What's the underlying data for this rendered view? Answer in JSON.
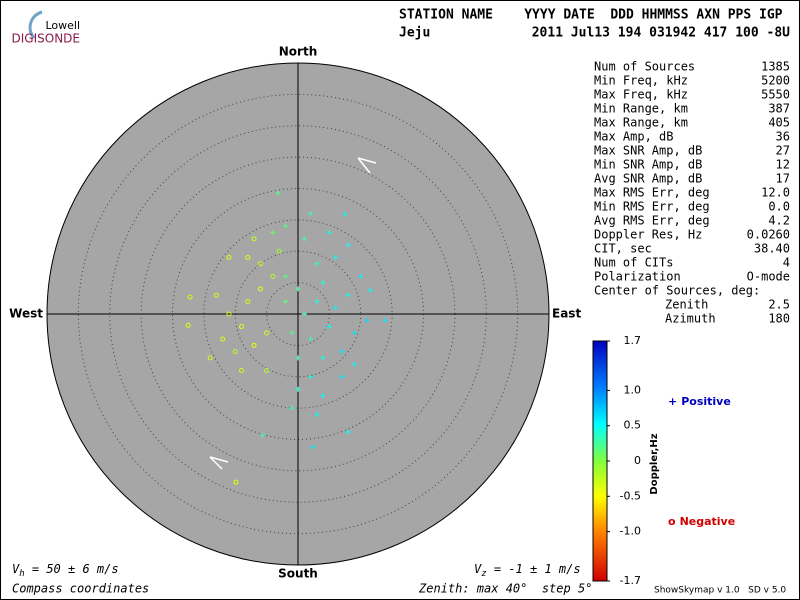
{
  "logo": {
    "top": "Lowell",
    "bottom": "DIGISONDE"
  },
  "header": {
    "line1": "STATION NAME    YYYY DATE  DDD HHMMSS AXN PPS IGP",
    "station": "Jeju",
    "line2": "2011 Jul13 194 031942 417 100 -8U"
  },
  "stats": {
    "rows": [
      [
        "Num of Sources",
        "1385"
      ],
      [
        "Min Freq, kHz",
        "5200"
      ],
      [
        "Max Freq, kHz",
        "5550"
      ],
      [
        "Min Range, km",
        "387"
      ],
      [
        "Max Range, km",
        "405"
      ],
      [
        "Max Amp, dB",
        "36"
      ],
      [
        "Max SNR Amp, dB",
        "27"
      ],
      [
        "Min SNR Amp, dB",
        "12"
      ],
      [
        "Avg SNR Amp, dB",
        "17"
      ],
      [
        "Max RMS Err, deg",
        "12.0"
      ],
      [
        "Min RMS Err, deg",
        "0.0"
      ],
      [
        "Avg RMS Err, deg",
        "4.2"
      ],
      [
        "Doppler Res, Hz",
        "0.0260"
      ],
      [
        "CIT, sec",
        "38.40"
      ],
      [
        "Num of CITs",
        "4"
      ],
      [
        "Polarization",
        "O-mode"
      ],
      [
        "Center of Sources, deg:"
      ],
      [
        "Zenith",
        "2.5"
      ],
      [
        "Azimuth",
        "180"
      ]
    ]
  },
  "chart_data": {
    "type": "skymap",
    "compass": {
      "north": "North",
      "south": "South",
      "east": "East",
      "west": "West"
    },
    "rlim": [
      0,
      40
    ],
    "rticks": [
      5,
      10,
      15,
      20,
      25,
      30,
      35
    ],
    "east": [
      -5.6,
      -9.9,
      -3.2,
      7.5,
      8.0,
      2.4,
      -17.2,
      -17.5,
      13.9,
      11.5,
      -8,
      -6,
      -9,
      -11,
      -7,
      -5,
      -10,
      -12,
      -4,
      -6,
      -3,
      -8,
      -13,
      -9,
      -5,
      -7,
      -2,
      -4,
      -14,
      -11,
      1,
      3,
      2,
      5,
      4,
      6,
      0,
      2,
      7,
      8,
      3,
      6,
      9,
      1,
      4,
      0,
      -1,
      -2,
      10,
      5,
      7,
      11,
      -1,
      3,
      2,
      8,
      -2,
      0,
      4,
      9
    ],
    "north": [
      -19.3,
      -26.8,
      19.3,
      15.9,
      -18.8,
      -21.2,
      2.7,
      -1.8,
      -1,
      3.8,
      2,
      4,
      -2,
      0,
      -5,
      -3,
      -6,
      -4,
      6,
      8,
      10,
      9,
      3,
      -9,
      -9,
      12,
      14,
      13,
      -7,
      9,
      0,
      2,
      -4,
      -2,
      5,
      1,
      -7,
      -10,
      -6,
      3,
      8,
      9,
      -3,
      12,
      -13,
      -12,
      -3,
      2,
      6,
      13,
      -10,
      -1,
      -15,
      -16,
      16,
      11,
      6,
      4,
      -7,
      -8
    ],
    "doppler": [
      0.3,
      -0.4,
      0.2,
      0.5,
      0.5,
      0.6,
      -0.3,
      -0.4,
      0.6,
      0.5,
      -0.3,
      -0.4,
      -0.35,
      -0.3,
      -0.45,
      -0.3,
      -0.25,
      -0.4,
      -0.2,
      -0.3,
      -0.1,
      -0.35,
      -0.3,
      -0.3,
      -0.2,
      -0.25,
      0.2,
      0.1,
      -0.3,
      -0.4,
      0.3,
      0.4,
      0.35,
      0.5,
      0.4,
      0.55,
      0.3,
      0.45,
      0.6,
      0.5,
      0.35,
      0.5,
      0.6,
      0.25,
      0.5,
      0.4,
      0.2,
      0.15,
      0.55,
      0.45,
      0.6,
      0.65,
      0.35,
      0.5,
      0.3,
      0.5,
      0.2,
      0.25,
      0.45,
      0.55
    ],
    "clim": [
      -1.7,
      1.7
    ],
    "cticks": [
      1.7,
      {
        "value": 1,
        "label": "1.0"
      },
      0.5,
      0,
      -0.5,
      {
        "value": -1,
        "label": "-1.0"
      },
      -1.7
    ],
    "colorbar_label": "Doppler,Hz",
    "legend": {
      "positive": "Positive",
      "negative": "Negative",
      "positive_symbol": "+",
      "negative_symbol": "o"
    }
  },
  "footer": {
    "vh": {
      "symbol": "V",
      "sub": "h",
      "text": " = 50 ± 6 m/s"
    },
    "vz": {
      "symbol": "V",
      "sub": "z",
      "text": " = -1 ± 1 m/s"
    },
    "coords": "Compass coordinates",
    "zenith": "Zenith: max 40°  step 5°",
    "version": "ShowSkymap v 1.0   SD v 5.0"
  }
}
